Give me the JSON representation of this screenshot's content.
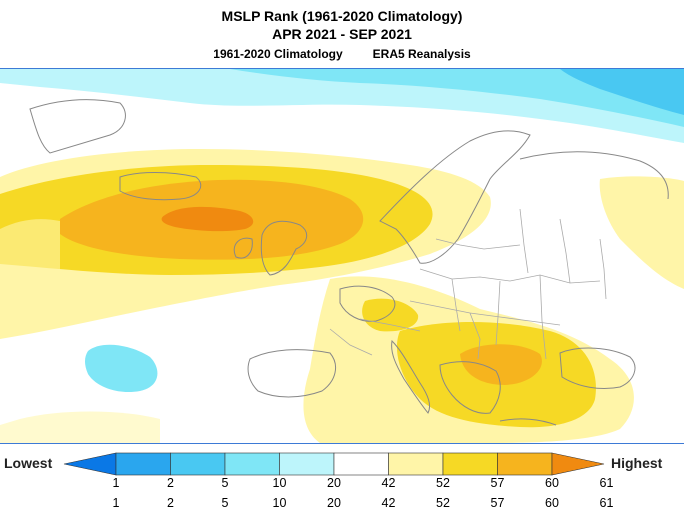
{
  "title": "MSLP Rank (1961-2020 Climatology)",
  "period": "APR 2021 - SEP 2021",
  "subtitle_left": "1961-2020 Climatology",
  "subtitle_right": "ERA5 Reanalysis",
  "legend": {
    "low_label": "Lowest",
    "high_label": "Highest",
    "ticks": [
      "1",
      "2",
      "5",
      "10",
      "20",
      "42",
      "52",
      "57",
      "60",
      "61"
    ],
    "colors": [
      "#0a78e6",
      "#2aa6ee",
      "#49c8f2",
      "#7fe6f6",
      "#bdf5fb",
      "#ffffff",
      "#fff5a8",
      "#f6d925",
      "#f6b41e",
      "#f08a10"
    ],
    "lower_row_ticks": [
      "1",
      "2",
      "5",
      "10",
      "20",
      "42",
      "52",
      "57",
      "60",
      "61"
    ]
  },
  "colors": {
    "frame": "#3d7ad6",
    "coast": "#888888",
    "border": "#aaaaaa"
  }
}
